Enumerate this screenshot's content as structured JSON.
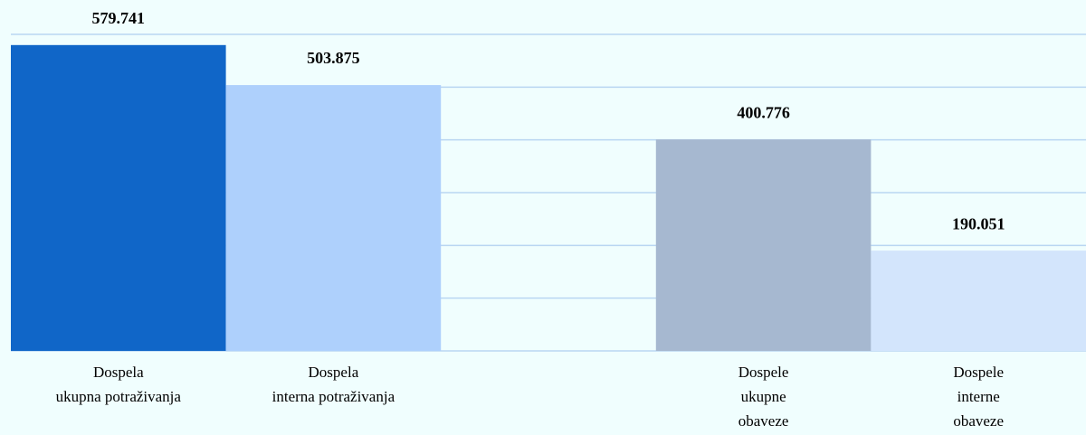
{
  "chart_data": {
    "type": "bar",
    "categories": [
      [
        "Dospela",
        "ukupna potraživanja"
      ],
      [
        "Dospela",
        "interna potraživanja"
      ],
      null,
      [
        "Dospele",
        "ukupne",
        "obaveze"
      ],
      [
        "Dospele",
        "interne",
        "obaveze"
      ]
    ],
    "values": [
      579.741,
      503.875,
      null,
      400.776,
      190.051
    ],
    "colors": [
      "#1066c8",
      "#aed0fc",
      null,
      "#a6b8d0",
      "#d3e5fc"
    ],
    "ylim": [
      0,
      600
    ],
    "yticks": [
      0,
      100,
      200,
      300,
      400,
      500,
      600
    ],
    "grid": true
  }
}
